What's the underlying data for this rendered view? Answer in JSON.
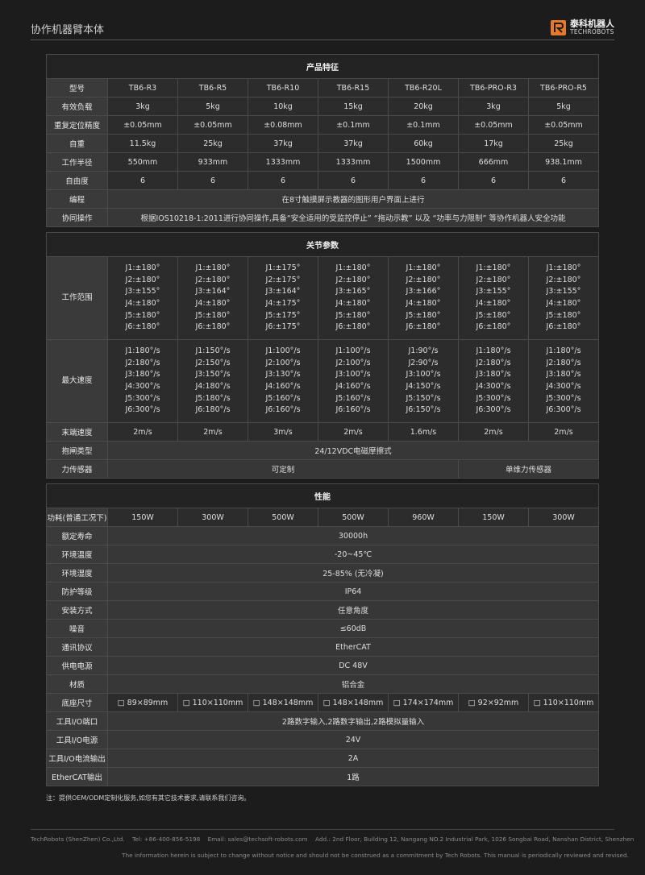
{
  "header": {
    "title": "协作机器臂本体",
    "brand_cn": "泰科机器人",
    "brand_en": "TECHROBOTS"
  },
  "sections": [
    {
      "title": "产品特征",
      "rows": [
        {
          "label": "型号",
          "cells": [
            "TB6-R3",
            "TB6-R5",
            "TB6-R10",
            "TB6-R15",
            "TB6-R20L",
            "TB6-PRO-R3",
            "TB6-PRO-R5"
          ]
        },
        {
          "label": "有效负载",
          "cells": [
            "3kg",
            "5kg",
            "10kg",
            "15kg",
            "20kg",
            "3kg",
            "5kg"
          ]
        },
        {
          "label": "重复定位精度",
          "cells": [
            "±0.05mm",
            "±0.05mm",
            "±0.08mm",
            "±0.1mm",
            "±0.1mm",
            "±0.05mm",
            "±0.05mm"
          ]
        },
        {
          "label": "自重",
          "cells": [
            "11.5kg",
            "25kg",
            "37kg",
            "37kg",
            "60kg",
            "17kg",
            "25kg"
          ]
        },
        {
          "label": "工作半径",
          "cells": [
            "550mm",
            "933mm",
            "1333mm",
            "1333mm",
            "1500mm",
            "666mm",
            "938.1mm"
          ]
        },
        {
          "label": "自由度",
          "cells": [
            "6",
            "6",
            "6",
            "6",
            "6",
            "6",
            "6"
          ]
        },
        {
          "label": "编程",
          "cells": [
            "在8寸触摸屏示教器的图形用户界面上进行"
          ]
        },
        {
          "label": "协同操作",
          "cells": [
            "根据IOS10218-1:2011进行协同操作,具备“安全适用的受监控停止” “拖动示教” 以及 “功率与力限制” 等协作机器人安全功能"
          ]
        }
      ]
    },
    {
      "title": "关节参数",
      "rows": [
        {
          "label": "工作范围",
          "cells": [
            [
              "J1:±180°",
              "J2:±180°",
              "J3:±155°",
              "J4:±180°",
              "J5:±180°",
              "J6:±180°"
            ],
            [
              "J1:±180°",
              "J2:±180°",
              "J3:±164°",
              "J4:±180°",
              "J5:±180°",
              "J6:±180°"
            ],
            [
              "J1:±175°",
              "J2:±175°",
              "J3:±164°",
              "J4:±175°",
              "J5:±175°",
              "J6:±175°"
            ],
            [
              "J1:±180°",
              "J2:±180°",
              "J3:±165°",
              "J4:±180°",
              "J5:±180°",
              "J6:±180°"
            ],
            [
              "J1:±180°",
              "J2:±180°",
              "J3:±166°",
              "J4:±180°",
              "J5:±180°",
              "J6:±180°"
            ],
            [
              "J1:±180°",
              "J2:±180°",
              "J3:±155°",
              "J4:±180°",
              "J5:±180°",
              "J6:±180°"
            ],
            [
              "J1:±180°",
              "J2:±180°",
              "J3:±155°",
              "J4:±180°",
              "J5:±180°",
              "J6:±180°"
            ]
          ]
        },
        {
          "label": "最大速度",
          "cells": [
            [
              "J1:180°/s",
              "J2:180°/s",
              "J3:180°/s",
              "J4:300°/s",
              "J5:300°/s",
              "J6:300°/s"
            ],
            [
              "J1:150°/s",
              "J2:150°/s",
              "J3:150°/s",
              "J4:180°/s",
              "J5:180°/s",
              "J6:180°/s"
            ],
            [
              "J1:100°/s",
              "J2:100°/s",
              "J3:130°/s",
              "J4:160°/s",
              "J5:160°/s",
              "J6:160°/s"
            ],
            [
              "J1:100°/s",
              "J2:100°/s",
              "J3:100°/s",
              "J4:160°/s",
              "J5:160°/s",
              "J6:160°/s"
            ],
            [
              "J1:90°/s",
              "J2:90°/s",
              "J3:100°/s",
              "J4:150°/s",
              "J5:150°/s",
              "J6:150°/s"
            ],
            [
              "J1:180°/s",
              "J2:180°/s",
              "J3:180°/s",
              "J4:300°/s",
              "J5:300°/s",
              "J6:300°/s"
            ],
            [
              "J1:180°/s",
              "J2:180°/s",
              "J3:180°/s",
              "J4:300°/s",
              "J5:300°/s",
              "J6:300°/s"
            ]
          ]
        },
        {
          "label": "末端速度",
          "cells": [
            "2m/s",
            "2m/s",
            "3m/s",
            "2m/s",
            "1.6m/s",
            "2m/s",
            "2m/s"
          ]
        },
        {
          "label": "抱闸类型",
          "cells": [
            "24/12VDC电磁摩擦式"
          ]
        },
        {
          "label": "力传感器",
          "cells": [
            "可定制",
            "单维力传感器"
          ]
        }
      ]
    },
    {
      "title": "性能",
      "rows": [
        {
          "label": "功耗(普通工况下)",
          "cells": [
            "150W",
            "300W",
            "500W",
            "500W",
            "960W",
            "150W",
            "300W"
          ]
        },
        {
          "label": "额定寿命",
          "cells": [
            "30000h"
          ]
        },
        {
          "label": "环境温度",
          "cells": [
            "-20~45℃"
          ]
        },
        {
          "label": "环境湿度",
          "cells": [
            "25-85% (无冷凝)"
          ]
        },
        {
          "label": "防护等级",
          "cells": [
            "IP64"
          ]
        },
        {
          "label": "安装方式",
          "cells": [
            "任意角度"
          ]
        },
        {
          "label": "噪音",
          "cells": [
            "≤60dB"
          ]
        },
        {
          "label": "通讯协议",
          "cells": [
            "EtherCAT"
          ]
        },
        {
          "label": "供电电源",
          "cells": [
            "DC 48V"
          ]
        },
        {
          "label": "材质",
          "cells": [
            "铝合金"
          ]
        },
        {
          "label": "底座尺寸",
          "cells": [
            "□ 89×89mm",
            "□ 110×110mm",
            "□ 148×148mm",
            "□ 148×148mm",
            "□ 174×174mm",
            "□ 92×92mm",
            "□ 110×110mm"
          ]
        },
        {
          "label": "工具I/O端口",
          "cells": [
            "2路数字输入,2路数字输出,2路模拟量输入"
          ]
        },
        {
          "label": "工具I/O电源",
          "cells": [
            "24V"
          ]
        },
        {
          "label": "工具I/O电流输出",
          "cells": [
            "2A"
          ]
        },
        {
          "label": "EtherCAT输出",
          "cells": [
            "1路"
          ]
        }
      ]
    }
  ],
  "note": "注：提供OEM/ODM定制化服务,如您有其它技术要求,请联系我们咨询。",
  "footer": {
    "company": "TechRobots (ShenZhen) Co.,Ltd.",
    "tel": "Tel: +86-400-856-5198",
    "email": "Email: sales@techsoft-robots.com",
    "address": "Add.: 2nd Floor, Building 12, Nangang NO.2 Industrial Park, 1026 Songbai Road, Nanshan District, Shenzhen",
    "disclaimer": "The information herein is subject to change without notice and should not be construed as a commitment by Tech Robots. This manual is periodically reviewed and revised."
  }
}
